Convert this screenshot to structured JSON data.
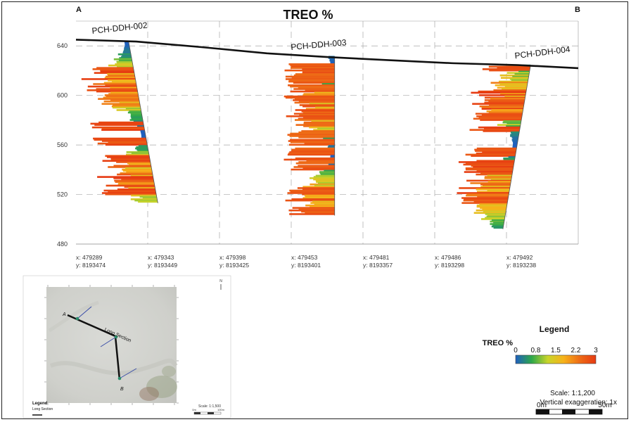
{
  "chart_data": {
    "type": "section",
    "title": "TREO %",
    "corner_labels": {
      "left": "A",
      "right": "B"
    },
    "y_ticks": [
      640,
      600,
      560,
      520,
      480
    ],
    "y_range": [
      480,
      660
    ],
    "x_positions": [
      {
        "x": "x: 479289",
        "y": "y: 8193474"
      },
      {
        "x": "x: 479343",
        "y": "y: 8193449"
      },
      {
        "x": "x: 479398",
        "y": "y: 8193425"
      },
      {
        "x": "x: 479453",
        "y": "y: 8193401"
      },
      {
        "x": "x: 479481",
        "y": "y: 8193357"
      },
      {
        "x": "x: 479486",
        "y": "y: 8193298"
      },
      {
        "x": "x: 479492",
        "y": "y: 8193238"
      }
    ],
    "grid": true,
    "topography_elevation": [
      [
        0,
        645
      ],
      [
        0.12,
        643.5
      ],
      [
        0.25,
        639
      ],
      [
        0.38,
        634
      ],
      [
        0.5,
        631
      ],
      [
        0.62,
        628.5
      ],
      [
        0.75,
        626
      ],
      [
        0.88,
        624.5
      ],
      [
        1.0,
        622
      ]
    ],
    "holes": [
      {
        "name": "PCH-DDH-002",
        "collar": [
          0.105,
          643
        ],
        "end": [
          0.163,
          513
        ],
        "max_treo": 3.0,
        "seed": 11,
        "step": 1.0
      },
      {
        "name": "PCH-DDH-003",
        "collar": [
          0.515,
          631
        ],
        "end": [
          0.515,
          503
        ],
        "max_treo": 2.8,
        "seed": 23,
        "step": 1.0
      },
      {
        "name": "PCH-DDH-004",
        "collar": [
          0.905,
          624
        ],
        "end": [
          0.85,
          492
        ],
        "max_treo": 3.0,
        "seed": 37,
        "step": 1.0
      }
    ],
    "legend": {
      "title": "Legend",
      "subtitle": "TREO %",
      "ticks": [
        "0",
        "0.8",
        "1.5",
        "2.2",
        "3"
      ],
      "colors": [
        "#1f5fbf",
        "#2ea84a",
        "#c8d42a",
        "#f7b21a",
        "#ee6c16",
        "#e63a12"
      ]
    },
    "scale_text": "Scale: 1:1,200",
    "vertical_exaggeration": "Vertical exaggeration: 1x",
    "scalebar": {
      "start": "0m",
      "end": "50m"
    }
  },
  "inset_map": {
    "label_a": "A",
    "label_b": "B",
    "label_section": "Long Section",
    "legend_title": "Legend",
    "legend_item": "Long Section",
    "scale_text": "Scale: 1:1,500",
    "scale_start": "0m",
    "scale_end": "100m"
  }
}
